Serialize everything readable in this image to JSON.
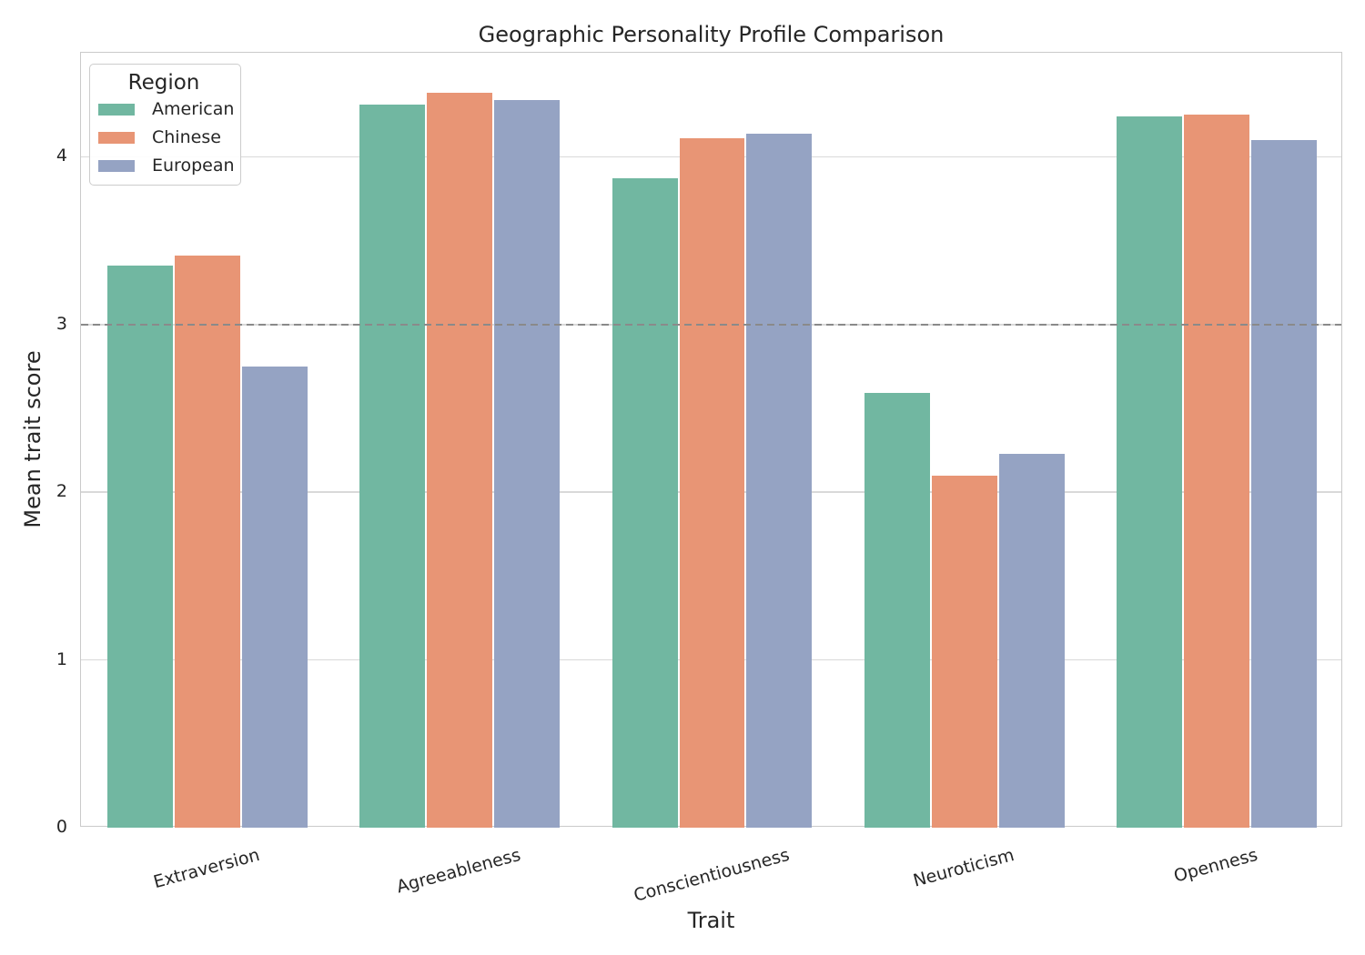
{
  "chart_data": {
    "type": "bar",
    "title": "Geographic Personality Profile Comparison",
    "xlabel": "Trait",
    "ylabel": "Mean trait score",
    "categories": [
      "Extraversion",
      "Agreeableness",
      "Conscientiousness",
      "Neuroticism",
      "Openness"
    ],
    "series": [
      {
        "name": "American",
        "color": "#71b7a1",
        "values": [
          3.35,
          4.31,
          3.87,
          2.59,
          4.24
        ]
      },
      {
        "name": "Chinese",
        "color": "#e89575",
        "values": [
          3.41,
          4.38,
          4.11,
          2.1,
          4.25
        ]
      },
      {
        "name": "European",
        "color": "#95a3c3",
        "values": [
          2.75,
          4.34,
          4.14,
          2.23,
          4.1
        ]
      }
    ],
    "yticks": [
      0,
      1,
      2,
      3,
      4
    ],
    "ylim": [
      0,
      4.62
    ],
    "grid": true,
    "bar_group_width_fraction": 0.8,
    "x_tick_rotation_deg": -15,
    "legend": {
      "title": "Region",
      "position": "upper-left"
    },
    "reference_line": {
      "y": 3,
      "style": "dashed",
      "color": "#8a8a8a"
    }
  },
  "style_colors": {
    "gridline": "#d9d9d9",
    "spine": "#cacaca",
    "text": "#262626",
    "background": "#ffffff"
  }
}
